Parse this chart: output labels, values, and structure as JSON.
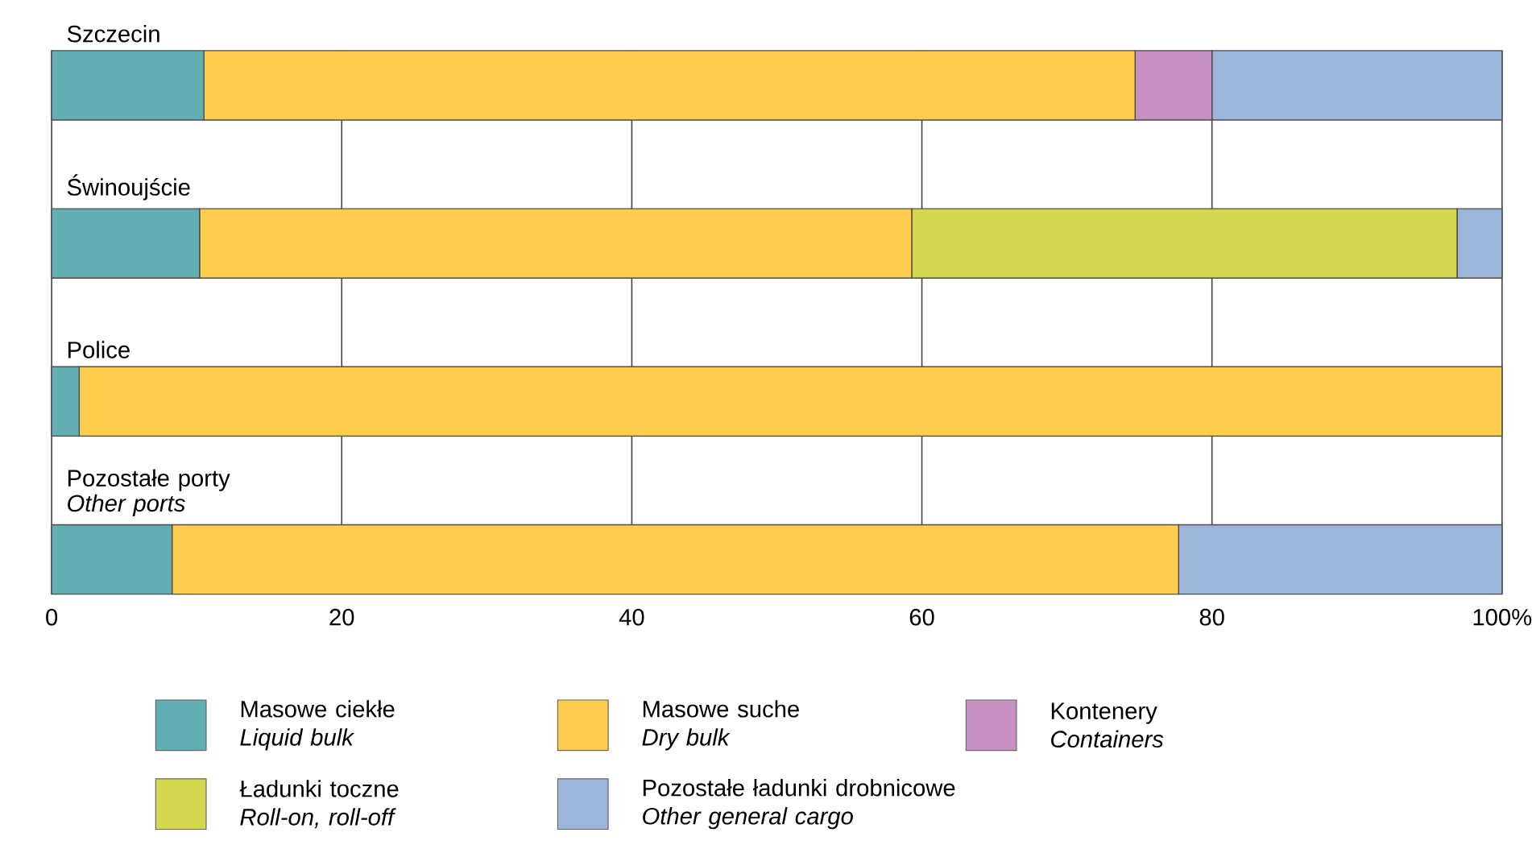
{
  "chart_data": {
    "type": "bar",
    "orientation": "horizontal",
    "stacked": true,
    "categories": [
      "Szczecin",
      "Świnoujście",
      "Police",
      "Pozostałe porty *Other ports*"
    ],
    "series": [
      {
        "name": "Masowe ciekłe *Liquid bulk*",
        "color": "#62afb3",
        "values": [
          10.5,
          10.2,
          1.9,
          8.3
        ]
      },
      {
        "name": "Masowe suche *Dry bulk*",
        "color": "#fecd4e",
        "values": [
          64.2,
          49.1,
          98.1,
          69.4
        ]
      },
      {
        "name": "Kontenery *Containers*",
        "color": "#c690c0",
        "values": [
          5.3,
          0,
          0,
          0
        ]
      },
      {
        "name": "Ładunki toczne *Roll-on, roll-off*",
        "color": "#d3d84f",
        "values": [
          0,
          37.6,
          0,
          0
        ]
      },
      {
        "name": "Pozostałe ładunki drobnicowe *Other general cargo*",
        "color": "#9bb5db",
        "values": [
          20,
          3.1,
          0,
          22.3
        ]
      }
    ],
    "xlim": [
      0,
      100
    ],
    "xticks": [
      0,
      20,
      40,
      60,
      80,
      {
        "value": 100,
        "label": "100%"
      }
    ],
    "grid": "x",
    "legend": "bottom"
  }
}
